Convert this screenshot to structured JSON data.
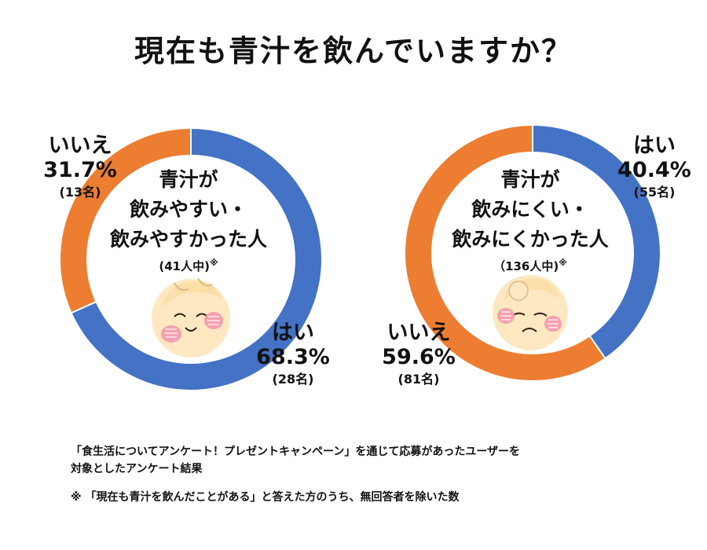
{
  "title": "現在も青汁を飲んでいますか？",
  "chart_data": [
    {
      "type": "pie",
      "center_lines": [
        "青汁が",
        "飲みやすい・",
        "飲みやすかった人"
      ],
      "center_sub": "(41人中)",
      "center_mark": "※",
      "slices": [
        {
          "label": "はい",
          "value": 68.3,
          "percent_text": "68.3%",
          "count_text": "(28名)",
          "color": "#4472C4"
        },
        {
          "label": "いいえ",
          "value": 31.7,
          "percent_text": "31.7%",
          "count_text": "(13名)",
          "color": "#ED7D31"
        }
      ]
    },
    {
      "type": "pie",
      "center_lines": [
        "青汁が",
        "飲みにくい・",
        "飲みにくかった人"
      ],
      "center_sub": "（136人中)",
      "center_mark": "※",
      "slices": [
        {
          "label": "はい",
          "value": 40.4,
          "percent_text": "40.4%",
          "count_text": "(55名)",
          "color": "#4472C4"
        },
        {
          "label": "いいえ",
          "value": 59.6,
          "percent_text": "59.6%",
          "count_text": "(81名)",
          "color": "#ED7D31"
        }
      ]
    }
  ],
  "footnotes": {
    "line1": "「食生活についてアンケート！プレゼントキャンペーン」を通じて応募があったユーザーを",
    "line2": "対象としたアンケート結果",
    "line3": "※ 「現在も青汁を飲んだことがある」と答えた方のうち、無回答者を除いた数"
  }
}
